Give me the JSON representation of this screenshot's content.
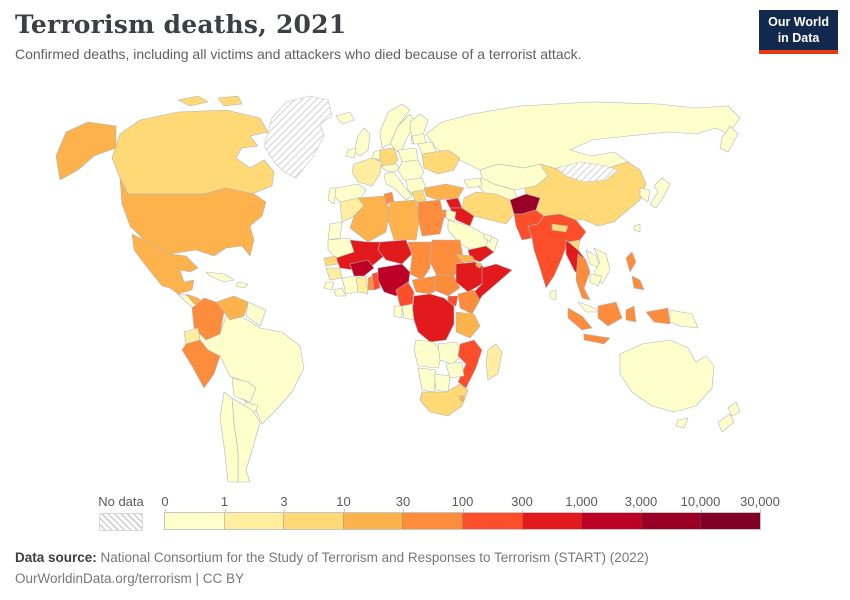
{
  "header": {
    "title": "Terrorism deaths, 2021",
    "subtitle": "Confirmed deaths, including all victims and attackers who died because of a terrorist attack.",
    "logo": {
      "line1": "Our World",
      "line2": "in Data",
      "bg_color": "#12294e",
      "accent_color": "#e63912"
    }
  },
  "footer": {
    "source_label": "Data source:",
    "source_text": " National Consortium for the Study of Terrorism and Responses to Terrorism (START) (2022)",
    "link_line": "OurWorldinData.org/terrorism | CC BY"
  },
  "chart_data": {
    "type": "choropleth",
    "title": "Terrorism deaths, 2021",
    "year": 2021,
    "metric": "Confirmed terrorism deaths (victims and attackers)",
    "scale": "log",
    "legend_position": "bottom",
    "no_data_label": "No data",
    "legend_ticks": [
      "0",
      "1",
      "3",
      "10",
      "30",
      "100",
      "300",
      "1,000",
      "3,000",
      "10,000",
      "30,000"
    ],
    "band_labels": [
      "0-1",
      "1-3",
      "3-10",
      "10-30",
      "30-100",
      "100-300",
      "300-1,000",
      "1,000-3,000",
      "3,000-10,000",
      "10,000-30,000"
    ],
    "color_stops": [
      "#FFFFCC",
      "#FFEDA0",
      "#FED976",
      "#FEB24C",
      "#FD8D3C",
      "#FC4E2A",
      "#E31A1C",
      "#BD0026",
      "#9A0026",
      "#800026"
    ],
    "regions": [
      {
        "id": "greenland",
        "name": "Greenland",
        "band": "no-data"
      },
      {
        "id": "mongolia",
        "name": "Mongolia",
        "band": "no-data"
      },
      {
        "id": "canada",
        "name": "Canada",
        "band": 2
      },
      {
        "id": "alaska",
        "name": "United States (Alaska)",
        "band": 3
      },
      {
        "id": "usa",
        "name": "United States",
        "band": 3
      },
      {
        "id": "mexico",
        "name": "Mexico",
        "band": 3
      },
      {
        "id": "centralamerica",
        "name": "Central America",
        "band": 0
      },
      {
        "id": "honduras",
        "name": "Honduras",
        "band": 3
      },
      {
        "id": "cuba",
        "name": "Cuba",
        "band": 0
      },
      {
        "id": "hispaniola",
        "name": "Haiti/Dominican Republic",
        "band": 0
      },
      {
        "id": "colombia",
        "name": "Colombia",
        "band": 4
      },
      {
        "id": "venezuela",
        "name": "Venezuela",
        "band": 3
      },
      {
        "id": "guyanas",
        "name": "Guyana/Suriname",
        "band": 0
      },
      {
        "id": "ecuador",
        "name": "Ecuador",
        "band": 1
      },
      {
        "id": "peru",
        "name": "Peru",
        "band": 4
      },
      {
        "id": "brazil",
        "name": "Brazil",
        "band": 0
      },
      {
        "id": "bolivia",
        "name": "Bolivia",
        "band": 0
      },
      {
        "id": "paraguay",
        "name": "Paraguay",
        "band": 0
      },
      {
        "id": "chile",
        "name": "Chile",
        "band": 0
      },
      {
        "id": "argentina",
        "name": "Argentina",
        "band": 0
      },
      {
        "id": "iceland",
        "name": "Iceland",
        "band": 0
      },
      {
        "id": "uk",
        "name": "United Kingdom",
        "band": 0
      },
      {
        "id": "ireland",
        "name": "Ireland",
        "band": 0
      },
      {
        "id": "norway",
        "name": "Norway",
        "band": 0
      },
      {
        "id": "sweden",
        "name": "Sweden",
        "band": 0
      },
      {
        "id": "finland",
        "name": "Finland",
        "band": 0
      },
      {
        "id": "denmark",
        "name": "Denmark",
        "band": 0
      },
      {
        "id": "lowcountries",
        "name": "Benelux",
        "band": 0
      },
      {
        "id": "germany",
        "name": "Germany",
        "band": 2
      },
      {
        "id": "france",
        "name": "France",
        "band": 1
      },
      {
        "id": "spain",
        "name": "Spain",
        "band": 0
      },
      {
        "id": "portugal",
        "name": "Portugal",
        "band": 0
      },
      {
        "id": "italy",
        "name": "Italy",
        "band": 0
      },
      {
        "id": "switzaustria",
        "name": "Switzerland/Austria",
        "band": 0
      },
      {
        "id": "poland",
        "name": "Poland",
        "band": 0
      },
      {
        "id": "baltics",
        "name": "Baltic states",
        "band": 0
      },
      {
        "id": "belarus",
        "name": "Belarus",
        "band": 0
      },
      {
        "id": "ukraine",
        "name": "Ukraine",
        "band": 2
      },
      {
        "id": "easteurope",
        "name": "Eastern Europe",
        "band": 0
      },
      {
        "id": "balkans",
        "name": "Balkans",
        "band": 0
      },
      {
        "id": "greece",
        "name": "Greece",
        "band": 2
      },
      {
        "id": "russia",
        "name": "Russia",
        "band": 0
      },
      {
        "id": "kamchatka",
        "name": "Russia (Far East)",
        "band": 0
      },
      {
        "id": "kazakhstan",
        "name": "Kazakhstan",
        "band": 0
      },
      {
        "id": "centralasia",
        "name": "Central Asia",
        "band": 0
      },
      {
        "id": "caucasus",
        "name": "Caucasus",
        "band": 0
      },
      {
        "id": "turkey",
        "name": "Turkey",
        "band": 3
      },
      {
        "id": "syria",
        "name": "Syria",
        "band": 6
      },
      {
        "id": "iraq",
        "name": "Iraq",
        "band": 6
      },
      {
        "id": "israel",
        "name": "Israel",
        "band": 4
      },
      {
        "id": "jordan",
        "name": "Jordan",
        "band": 0
      },
      {
        "id": "saudiarabia",
        "name": "Saudi Arabia",
        "band": 0
      },
      {
        "id": "yemen",
        "name": "Yemen",
        "band": 6
      },
      {
        "id": "oman",
        "name": "Oman",
        "band": 0
      },
      {
        "id": "uae",
        "name": "United Arab Emirates",
        "band": 0
      },
      {
        "id": "iran",
        "name": "Iran",
        "band": 2
      },
      {
        "id": "afghanistan",
        "name": "Afghanistan",
        "band": 8
      },
      {
        "id": "pakistan",
        "name": "Pakistan",
        "band": 5
      },
      {
        "id": "india",
        "name": "India",
        "band": 5
      },
      {
        "id": "nepal",
        "name": "Nepal",
        "band": 2
      },
      {
        "id": "bangladesh",
        "name": "Bangladesh",
        "band": 2
      },
      {
        "id": "srilanka",
        "name": "Sri Lanka",
        "band": 0
      },
      {
        "id": "china",
        "name": "China",
        "band": 2
      },
      {
        "id": "korea",
        "name": "Korea",
        "band": 0
      },
      {
        "id": "japan",
        "name": "Japan",
        "band": 0
      },
      {
        "id": "taiwan",
        "name": "Taiwan",
        "band": 0
      },
      {
        "id": "myanmar",
        "name": "Myanmar",
        "band": 6
      },
      {
        "id": "thailand",
        "name": "Thailand",
        "band": 4
      },
      {
        "id": "laos",
        "name": "Laos",
        "band": 0
      },
      {
        "id": "vietnam",
        "name": "Vietnam",
        "band": 0
      },
      {
        "id": "cambodia",
        "name": "Cambodia",
        "band": 0
      },
      {
        "id": "malaysia",
        "name": "Malaysia",
        "band": 0
      },
      {
        "id": "sumatra",
        "name": "Indonesia (Sumatra)",
        "band": 4
      },
      {
        "id": "java",
        "name": "Indonesia (Java)",
        "band": 4
      },
      {
        "id": "borneo",
        "name": "Indonesia (Borneo)",
        "band": 4
      },
      {
        "id": "sulawesi",
        "name": "Indonesia (Sulawesi)",
        "band": 4
      },
      {
        "id": "westpapua",
        "name": "Indonesia (Papua)",
        "band": 4
      },
      {
        "id": "philippines1",
        "name": "Philippines (north)",
        "band": 4
      },
      {
        "id": "philippines2",
        "name": "Philippines (south)",
        "band": 4
      },
      {
        "id": "png",
        "name": "Papua New Guinea",
        "band": 0
      },
      {
        "id": "australia",
        "name": "Australia",
        "band": 0
      },
      {
        "id": "tasmania",
        "name": "Australia (Tasmania)",
        "band": 0
      },
      {
        "id": "nznorth",
        "name": "New Zealand (North Island)",
        "band": 0
      },
      {
        "id": "nzsouth",
        "name": "New Zealand (South Island)",
        "band": 0
      },
      {
        "id": "morocco",
        "name": "Morocco",
        "band": 1
      },
      {
        "id": "westsahara",
        "name": "Western Sahara",
        "band": 0
      },
      {
        "id": "algeria",
        "name": "Algeria",
        "band": 3
      },
      {
        "id": "tunisia",
        "name": "Tunisia",
        "band": 4
      },
      {
        "id": "libya",
        "name": "Libya",
        "band": 3
      },
      {
        "id": "egypt",
        "name": "Egypt",
        "band": 4
      },
      {
        "id": "mauritania",
        "name": "Mauritania",
        "band": 0
      },
      {
        "id": "mali",
        "name": "Mali",
        "band": 6
      },
      {
        "id": "senegal",
        "name": "Senegal",
        "band": 2
      },
      {
        "id": "guinea",
        "name": "Guinea",
        "band": 1
      },
      {
        "id": "sierraleone",
        "name": "Sierra Leone",
        "band": 0
      },
      {
        "id": "liberia",
        "name": "Liberia",
        "band": 0
      },
      {
        "id": "ivorycoast",
        "name": "Cote d'Ivoire",
        "band": 0
      },
      {
        "id": "ghana",
        "name": "Ghana",
        "band": 1
      },
      {
        "id": "burkinafaso",
        "name": "Burkina Faso",
        "band": 7
      },
      {
        "id": "togo",
        "name": "Togo",
        "band": 4
      },
      {
        "id": "benin",
        "name": "Benin",
        "band": 5
      },
      {
        "id": "niger",
        "name": "Niger",
        "band": 6
      },
      {
        "id": "nigeria",
        "name": "Nigeria",
        "band": 7
      },
      {
        "id": "chad",
        "name": "Chad",
        "band": 4
      },
      {
        "id": "sudan",
        "name": "Sudan",
        "band": 4
      },
      {
        "id": "eritrea",
        "name": "Eritrea",
        "band": 3
      },
      {
        "id": "djibouti",
        "name": "Djibouti",
        "band": 3
      },
      {
        "id": "cameroon",
        "name": "Cameroon",
        "band": 5
      },
      {
        "id": "car",
        "name": "Central African Republic",
        "band": 4
      },
      {
        "id": "southsudan",
        "name": "South Sudan",
        "band": 4
      },
      {
        "id": "ethiopia",
        "name": "Ethiopia",
        "band": 6
      },
      {
        "id": "somalia",
        "name": "Somalia",
        "band": 6
      },
      {
        "id": "kenya",
        "name": "Kenya",
        "band": 4
      },
      {
        "id": "uganda",
        "name": "Uganda",
        "band": 5
      },
      {
        "id": "drc",
        "name": "Democratic Republic of Congo",
        "band": 6
      },
      {
        "id": "congo",
        "name": "Congo",
        "band": 0
      },
      {
        "id": "gabon",
        "name": "Gabon",
        "band": 0
      },
      {
        "id": "tanzania",
        "name": "Tanzania",
        "band": 3
      },
      {
        "id": "angola",
        "name": "Angola",
        "band": 0
      },
      {
        "id": "zambia",
        "name": "Zambia",
        "band": 0
      },
      {
        "id": "mozambique",
        "name": "Mozambique",
        "band": 5
      },
      {
        "id": "zimbabwe",
        "name": "Zimbabwe",
        "band": 0
      },
      {
        "id": "namibia",
        "name": "Namibia",
        "band": 0
      },
      {
        "id": "botswana",
        "name": "Botswana",
        "band": 0
      },
      {
        "id": "southafrica",
        "name": "South Africa",
        "band": 2
      },
      {
        "id": "eswatini",
        "name": "Eswatini",
        "band": 3
      },
      {
        "id": "madagascar",
        "name": "Madagascar",
        "band": 1
      }
    ]
  }
}
